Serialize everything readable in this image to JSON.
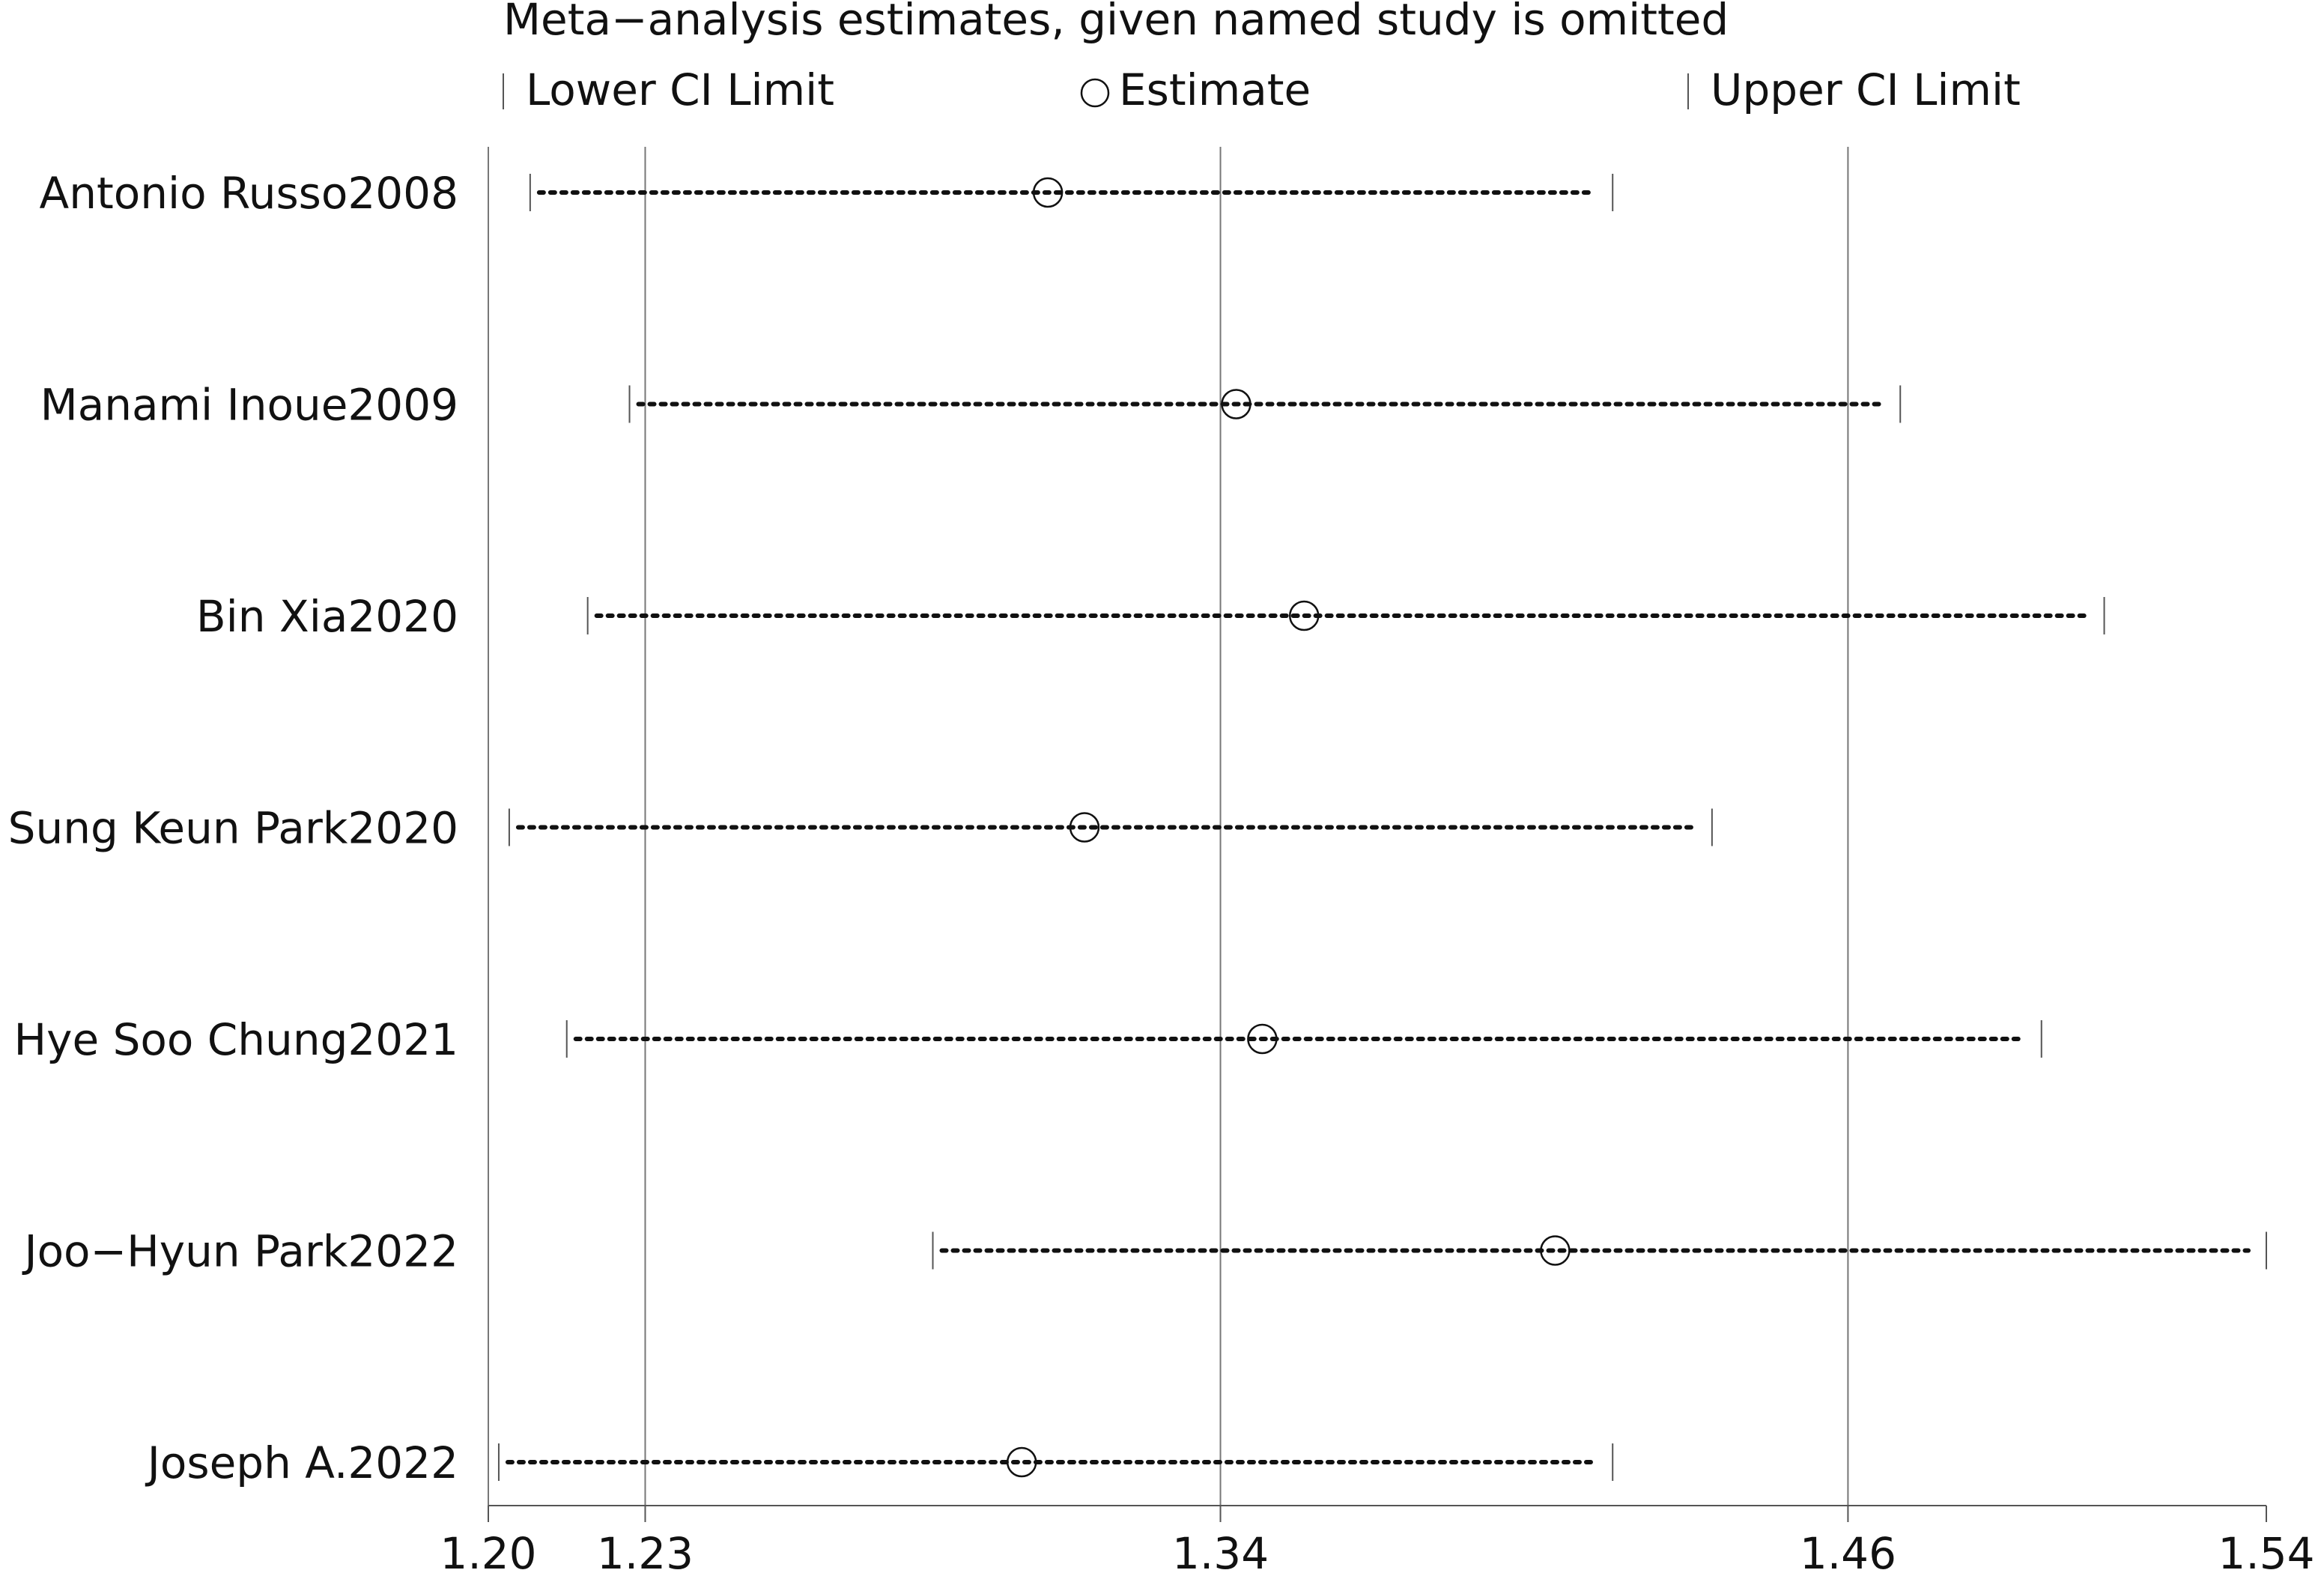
{
  "chart_data": {
    "type": "forest",
    "title": "Meta−analysis estimates, given named study is omitted",
    "legend": {
      "lower": "Lower CI Limit",
      "estimate": "Estimate",
      "upper": "Upper CI Limit",
      "placement": "top"
    },
    "x_ticks": [
      {
        "value": 1.2,
        "label": "1.20"
      },
      {
        "value": 1.23,
        "label": "1.23"
      },
      {
        "value": 1.34,
        "label": "1.34"
      },
      {
        "value": 1.46,
        "label": "1.46"
      },
      {
        "value": 1.54,
        "label": "1.54"
      }
    ],
    "xlim": [
      1.2,
      1.54
    ],
    "reference_lines": [
      1.23,
      1.34,
      1.46
    ],
    "studies": [
      {
        "name": "Antonio Russo2008",
        "lower": 1.208,
        "estimate": 1.307,
        "upper": 1.415
      },
      {
        "name": "Manami Inoue2009",
        "lower": 1.227,
        "estimate": 1.343,
        "upper": 1.47
      },
      {
        "name": "Bin Xia2020",
        "lower": 1.219,
        "estimate": 1.356,
        "upper": 1.509
      },
      {
        "name": "Sung Keun Park2020",
        "lower": 1.204,
        "estimate": 1.314,
        "upper": 1.434
      },
      {
        "name": "Hye Soo Chung2021",
        "lower": 1.215,
        "estimate": 1.348,
        "upper": 1.497
      },
      {
        "name": "Joo−Hyun Park2022",
        "lower": 1.285,
        "estimate": 1.404,
        "upper": 1.54
      },
      {
        "name": "Joseph A.2022",
        "lower": 1.202,
        "estimate": 1.302,
        "upper": 1.415
      }
    ]
  }
}
